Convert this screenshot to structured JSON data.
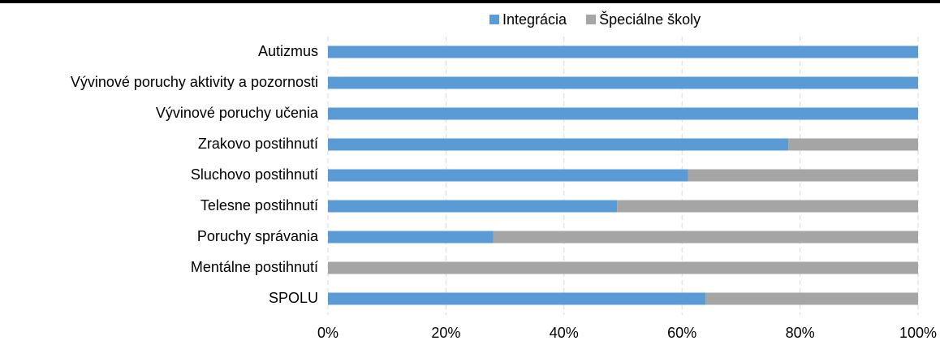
{
  "chart_data": {
    "type": "stacked_bar_horizontal",
    "categories": [
      "Autizmus",
      "Vývinové poruchy aktivity a pozornosti",
      "Vývinové poruchy učenia",
      "Zrakovo postihnutí",
      "Sluchovo postihnutí ",
      "Telesne postihnutí",
      "Poruchy správania",
      "Mentálne postihnutí",
      "SPOLU"
    ],
    "series": [
      {
        "name": "Integrácia",
        "color": "#5b9bd5",
        "values": [
          100,
          100,
          100,
          78,
          61,
          49,
          28,
          0,
          64
        ]
      },
      {
        "name": "Špeciálne školy",
        "color": "#a5a5a5",
        "values": [
          0,
          0,
          0,
          22,
          39,
          51,
          72,
          100,
          36
        ]
      }
    ],
    "xlim": [
      0,
      100
    ],
    "xticks": [
      {
        "value": 0,
        "label": "0%"
      },
      {
        "value": 20,
        "label": "20%"
      },
      {
        "value": 40,
        "label": "40%"
      },
      {
        "value": 60,
        "label": "60%"
      },
      {
        "value": 80,
        "label": "80%"
      },
      {
        "value": 100,
        "label": "100%"
      }
    ],
    "grid": true,
    "legend": "top"
  }
}
